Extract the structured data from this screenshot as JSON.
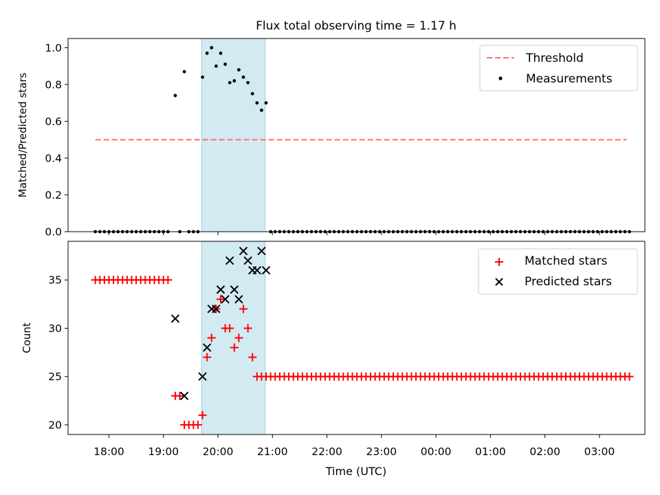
{
  "title": "Flux total observing time = 1.17 h",
  "colors": {
    "threshold": "#ff6f6f",
    "measurement": "#000000",
    "matched": "#ff0000",
    "predicted": "#000000",
    "observing_span": "#add8e6"
  },
  "x_ticks": [
    "18:00",
    "19:00",
    "20:00",
    "21:00",
    "22:00",
    "23:00",
    "00:00",
    "01:00",
    "02:00",
    "03:00"
  ],
  "xlabel": "Time (UTC)",
  "chart_data": [
    {
      "type": "scatter",
      "ylabel": "Matched/Predicted stars",
      "ylim": [
        0,
        1.05
      ],
      "y_ticks": [
        "0.0",
        "0.2",
        "0.4",
        "0.6",
        "0.8",
        "1.0"
      ],
      "xlim": [
        "17:15",
        "03:50"
      ],
      "grid": false,
      "legend": "top-right",
      "legend_entries": [
        "Threshold",
        "Measurements"
      ],
      "observing_span": [
        "19:42",
        "20:52"
      ],
      "threshold": {
        "name": "Threshold",
        "y": 0.5,
        "x": [
          "17:45",
          "03:30"
        ]
      },
      "measurements": {
        "name": "Measurements",
        "x": [
          "17:45",
          "17:50",
          "17:55",
          "18:00",
          "18:05",
          "18:10",
          "18:15",
          "18:20",
          "18:25",
          "18:30",
          "18:35",
          "18:40",
          "18:45",
          "18:50",
          "18:55",
          "19:00",
          "19:05",
          "19:13",
          "19:18",
          "19:23",
          "19:28",
          "19:33",
          "19:38",
          "19:43",
          "19:48",
          "19:53",
          "19:58",
          "20:03",
          "20:08",
          "20:13",
          "20:18",
          "20:23",
          "20:28",
          "20:33",
          "20:38",
          "20:43",
          "20:48",
          "20:53",
          "20:58",
          "21:03",
          "21:08",
          "21:13",
          "21:18",
          "21:23",
          "21:28",
          "21:33",
          "21:38",
          "21:43",
          "21:48",
          "21:53",
          "21:58",
          "22:03",
          "22:08",
          "22:13",
          "22:18",
          "22:23",
          "22:28",
          "22:33",
          "22:38",
          "22:43",
          "22:48",
          "22:53",
          "22:58",
          "23:03",
          "23:08",
          "23:13",
          "23:18",
          "23:23",
          "23:28",
          "23:33",
          "23:38",
          "23:43",
          "23:48",
          "23:53",
          "23:58",
          "00:03",
          "00:08",
          "00:13",
          "00:18",
          "00:23",
          "00:28",
          "00:33",
          "00:38",
          "00:43",
          "00:48",
          "00:53",
          "00:58",
          "01:03",
          "01:08",
          "01:13",
          "01:18",
          "01:23",
          "01:28",
          "01:33",
          "01:38",
          "01:43",
          "01:48",
          "01:53",
          "01:58",
          "02:03",
          "02:08",
          "02:13",
          "02:18",
          "02:23",
          "02:28",
          "02:33",
          "02:38",
          "02:43",
          "02:48",
          "02:53",
          "02:58",
          "03:03",
          "03:08",
          "03:13",
          "03:18",
          "03:23",
          "03:28",
          "03:33"
        ],
        "y": [
          0,
          0,
          0,
          0,
          0,
          0,
          0,
          0,
          0,
          0,
          0,
          0,
          0,
          0,
          0,
          0,
          0,
          0.74,
          0,
          0.87,
          0,
          0,
          0,
          0.84,
          0.97,
          1.0,
          0.9,
          0.97,
          0.91,
          0.81,
          0.82,
          0.88,
          0.84,
          0.81,
          0.75,
          0.7,
          0.66,
          0.7,
          0,
          0,
          0,
          0,
          0,
          0,
          0,
          0,
          0,
          0,
          0,
          0,
          0,
          0,
          0,
          0,
          0,
          0,
          0,
          0,
          0,
          0,
          0,
          0,
          0,
          0,
          0,
          0,
          0,
          0,
          0,
          0,
          0,
          0,
          0,
          0,
          0,
          0,
          0,
          0,
          0,
          0,
          0,
          0,
          0,
          0,
          0,
          0,
          0,
          0,
          0,
          0,
          0,
          0,
          0,
          0,
          0,
          0,
          0,
          0,
          0,
          0,
          0,
          0,
          0,
          0,
          0,
          0,
          0,
          0,
          0,
          0,
          0,
          0,
          0,
          0,
          0,
          0,
          0,
          0
        ]
      }
    },
    {
      "type": "scatter",
      "ylabel": "Count",
      "ylim": [
        19,
        39
      ],
      "y_ticks": [
        "20",
        "25",
        "30",
        "35"
      ],
      "xlim": [
        "17:15",
        "03:50"
      ],
      "grid": false,
      "legend": "top-right",
      "legend_entries": [
        "Matched stars",
        "Predicted stars"
      ],
      "observing_span": [
        "19:42",
        "20:52"
      ],
      "series": [
        {
          "name": "Matched stars",
          "marker": "plus",
          "x": [
            "17:45",
            "17:50",
            "17:55",
            "18:00",
            "18:05",
            "18:10",
            "18:15",
            "18:20",
            "18:25",
            "18:30",
            "18:35",
            "18:40",
            "18:45",
            "18:50",
            "18:55",
            "19:00",
            "19:05",
            "19:13",
            "19:18",
            "19:23",
            "19:28",
            "19:33",
            "19:38",
            "19:43",
            "19:48",
            "19:53",
            "19:58",
            "20:03",
            "20:08",
            "20:13",
            "20:18",
            "20:23",
            "20:28",
            "20:33",
            "20:38",
            "20:43",
            "20:48",
            "20:53",
            "20:58",
            "21:03",
            "21:08",
            "21:13",
            "21:18",
            "21:23",
            "21:28",
            "21:33",
            "21:38",
            "21:43",
            "21:48",
            "21:53",
            "21:58",
            "22:03",
            "22:08",
            "22:13",
            "22:18",
            "22:23",
            "22:28",
            "22:33",
            "22:38",
            "22:43",
            "22:48",
            "22:53",
            "22:58",
            "23:03",
            "23:08",
            "23:13",
            "23:18",
            "23:23",
            "23:28",
            "23:33",
            "23:38",
            "23:43",
            "23:48",
            "23:53",
            "23:58",
            "00:03",
            "00:08",
            "00:13",
            "00:18",
            "00:23",
            "00:28",
            "00:33",
            "00:38",
            "00:43",
            "00:48",
            "00:53",
            "00:58",
            "01:03",
            "01:08",
            "01:13",
            "01:18",
            "01:23",
            "01:28",
            "01:33",
            "01:38",
            "01:43",
            "01:48",
            "01:53",
            "01:58",
            "02:03",
            "02:08",
            "02:13",
            "02:18",
            "02:23",
            "02:28",
            "02:33",
            "02:38",
            "02:43",
            "02:48",
            "02:53",
            "02:58",
            "03:03",
            "03:08",
            "03:13",
            "03:18",
            "03:23",
            "03:28",
            "03:33"
          ],
          "y": [
            35,
            35,
            35,
            35,
            35,
            35,
            35,
            35,
            35,
            35,
            35,
            35,
            35,
            35,
            35,
            35,
            35,
            23,
            23,
            20,
            20,
            20,
            20,
            21,
            27,
            29,
            32,
            33,
            30,
            30,
            28,
            29,
            32,
            30,
            27,
            25,
            25,
            25,
            25,
            25,
            25,
            25,
            25,
            25,
            25,
            25,
            25,
            25,
            25,
            25,
            25,
            25,
            25,
            25,
            25,
            25,
            25,
            25,
            25,
            25,
            25,
            25,
            25,
            25,
            25,
            25,
            25,
            25,
            25,
            25,
            25,
            25,
            25,
            25,
            25,
            25,
            25,
            25,
            25,
            25,
            25,
            25,
            25,
            25,
            25,
            25,
            25,
            25,
            25,
            25,
            25,
            25,
            25,
            25,
            25,
            25,
            25,
            25,
            25,
            25,
            25,
            25,
            25,
            25,
            25,
            25,
            25,
            25,
            25,
            25,
            25,
            25,
            25,
            25,
            25,
            25,
            25,
            25
          ]
        },
        {
          "name": "Predicted stars",
          "marker": "x",
          "x": [
            "19:13",
            "19:23",
            "19:43",
            "19:48",
            "19:53",
            "19:58",
            "20:03",
            "20:08",
            "20:13",
            "20:18",
            "20:23",
            "20:28",
            "20:33",
            "20:38",
            "20:43",
            "20:48",
            "20:53"
          ],
          "y": [
            31,
            23,
            25,
            28,
            32,
            32,
            34,
            33,
            37,
            34,
            33,
            38,
            37,
            36,
            36,
            38,
            36
          ]
        }
      ]
    }
  ]
}
